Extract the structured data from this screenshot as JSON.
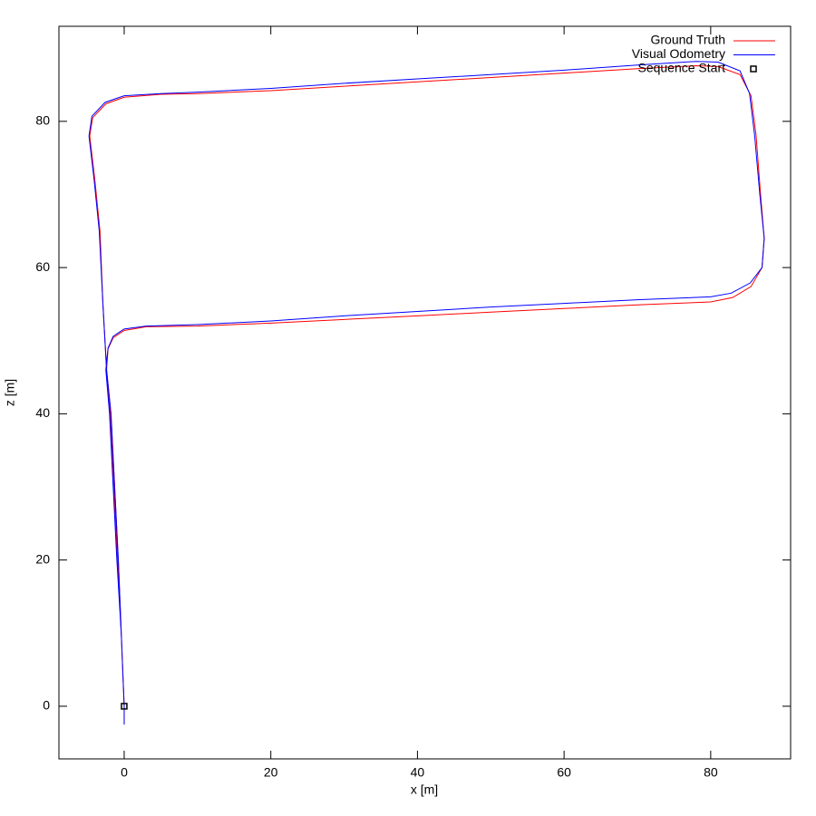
{
  "chart_data": {
    "type": "line",
    "xlabel": "x [m]",
    "ylabel": "z [m]",
    "xlim": [
      -8.9,
      90.9
    ],
    "ylim": [
      -7.2,
      93.0
    ],
    "xticks": [
      0,
      20,
      40,
      60,
      80
    ],
    "yticks": [
      0,
      20,
      40,
      60,
      80
    ],
    "legend": "top right",
    "series": [
      {
        "name": "Ground Truth",
        "color": "#ff0000",
        "x": [
          0,
          -0.4,
          -0.8,
          -1.3,
          -1.8,
          -2.4,
          -2.9,
          -3.3,
          -4.0,
          -4.7,
          -4.3,
          -2.5,
          0,
          5,
          10,
          20,
          30,
          40,
          50,
          60,
          70,
          78,
          81,
          84,
          85.5,
          86.2,
          86.8,
          87.3,
          87.0,
          85.5,
          83,
          80,
          70,
          60,
          50,
          40,
          30,
          20,
          10,
          3,
          0,
          -1.5,
          -2.2,
          -2.4,
          -1.9,
          -1.4,
          -0.9,
          -0.4,
          0,
          0
        ],
        "values": [
          0,
          10,
          20,
          30,
          40,
          46,
          55,
          65,
          72,
          78,
          80.5,
          82.4,
          83.3,
          83.7,
          83.8,
          84.2,
          84.8,
          85.4,
          86.0,
          86.6,
          87.2,
          87.6,
          87.5,
          86.4,
          83.5,
          78,
          70,
          64,
          60,
          57.4,
          55.9,
          55.3,
          54.9,
          54.4,
          53.9,
          53.4,
          52.9,
          52.4,
          52.0,
          51.9,
          51.4,
          50.4,
          48.9,
          46,
          40,
          30,
          20,
          10,
          0,
          -2.5
        ]
      },
      {
        "name": "Visual Odometry",
        "color": "#0000ff",
        "x": [
          0,
          -0.4,
          -0.8,
          -1.3,
          -1.8,
          -2.4,
          -2.9,
          -3.4,
          -4.1,
          -4.8,
          -4.4,
          -2.6,
          0,
          5,
          10,
          20,
          30,
          40,
          50,
          60,
          70,
          78,
          81,
          84,
          85.3,
          86.0,
          86.7,
          87.3,
          87.0,
          85.4,
          82.8,
          80,
          70,
          60,
          50,
          40,
          30,
          20,
          10,
          3,
          0,
          -1.5,
          -2.2,
          -2.5,
          -2.0,
          -1.5,
          -1.0,
          -0.4,
          0,
          0
        ],
        "values": [
          0,
          10,
          20,
          30,
          40,
          46,
          55,
          65,
          72,
          78,
          80.7,
          82.6,
          83.5,
          83.8,
          84.0,
          84.5,
          85.2,
          85.8,
          86.4,
          87.0,
          87.7,
          88.2,
          88.1,
          86.9,
          83.8,
          78,
          70,
          64,
          60,
          57.9,
          56.5,
          56.0,
          55.6,
          55.1,
          54.6,
          54.0,
          53.4,
          52.7,
          52.2,
          52.0,
          51.6,
          50.6,
          49.0,
          46,
          40,
          30,
          20,
          10,
          0,
          -2.5
        ]
      },
      {
        "name": "Sequence Start",
        "color": "#000000",
        "marker": "square",
        "x": [
          0
        ],
        "values": [
          0
        ]
      }
    ]
  }
}
